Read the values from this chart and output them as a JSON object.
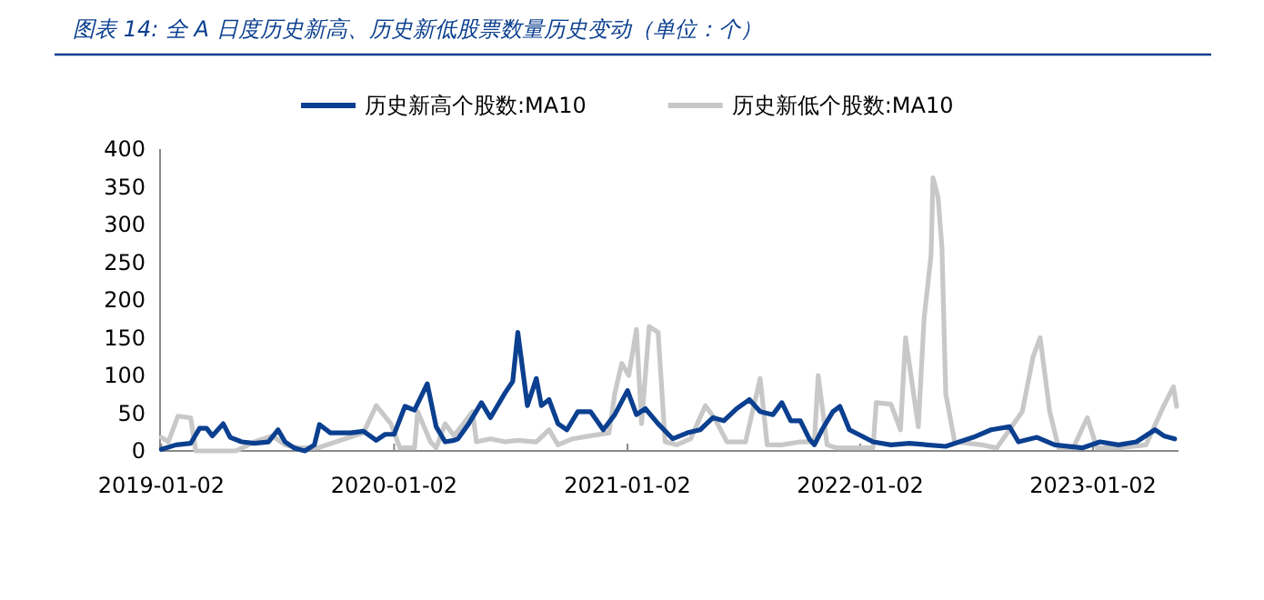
{
  "chart_data": {
    "type": "line",
    "title": "图表 14:  全 A 日度历史新高、历史新低股票数量历史变动（单位：个）",
    "legend": "top",
    "xlim": [
      "2018-12-31",
      "2023-05-16"
    ],
    "xticks": [
      "2019-01-02",
      "2020-01-02",
      "2021-01-02",
      "2022-01-02",
      "2023-01-02"
    ],
    "ylim": [
      0,
      400
    ],
    "yticks": [
      0,
      50,
      100,
      150,
      200,
      250,
      300,
      350,
      400
    ],
    "grid": false,
    "series": [
      {
        "name": "历史新高个股数:MA10",
        "color": "#0b3f8f",
        "x": [
          "2019-01-02",
          "2019-01-25",
          "2019-02-17",
          "2019-03-03",
          "2019-03-14",
          "2019-03-23",
          "2019-04-09",
          "2019-04-20",
          "2019-05-08",
          "2019-05-28",
          "2019-06-19",
          "2019-07-04",
          "2019-07-15",
          "2019-07-29",
          "2019-08-15",
          "2019-08-30",
          "2019-09-07",
          "2019-09-24",
          "2019-10-26",
          "2019-11-15",
          "2019-12-05",
          "2019-12-19",
          "2020-01-02",
          "2020-01-19",
          "2020-02-03",
          "2020-02-23",
          "2020-03-08",
          "2020-03-22",
          "2020-04-05",
          "2020-04-11",
          "2020-04-28",
          "2020-05-18",
          "2020-06-01",
          "2020-06-24",
          "2020-07-06",
          "2020-07-14",
          "2020-07-29",
          "2020-08-12",
          "2020-08-20",
          "2020-09-01",
          "2020-09-15",
          "2020-09-29",
          "2020-10-16",
          "2020-11-05",
          "2020-11-25",
          "2020-12-13",
          "2021-01-02",
          "2021-01-16",
          "2021-01-30",
          "2021-02-19",
          "2021-03-14",
          "2021-04-06",
          "2021-04-26",
          "2021-05-16",
          "2021-06-02",
          "2021-06-22",
          "2021-07-12",
          "2021-07-29",
          "2021-08-18",
          "2021-09-01",
          "2021-09-15",
          "2021-09-30",
          "2021-10-14",
          "2021-10-22",
          "2021-11-03",
          "2021-11-20",
          "2021-12-01",
          "2021-12-16",
          "2021-12-30",
          "2022-01-22",
          "2022-02-19",
          "2022-03-20",
          "2022-05-16",
          "2022-06-28",
          "2022-07-26",
          "2022-08-24",
          "2022-09-07",
          "2022-10-06",
          "2022-11-03",
          "2022-12-16",
          "2023-01-13",
          "2023-02-11",
          "2023-03-11",
          "2023-04-09",
          "2023-04-23",
          "2023-05-10"
        ],
        "values": [
          2,
          8,
          10,
          30,
          30,
          20,
          36,
          18,
          12,
          10,
          12,
          28,
          12,
          4,
          0,
          8,
          35,
          24,
          24,
          26,
          14,
          22,
          22,
          59,
          54,
          89,
          32,
          12,
          14,
          16,
          36,
          64,
          44,
          77,
          92,
          157,
          60,
          96,
          60,
          68,
          36,
          28,
          52,
          52,
          28,
          48,
          80,
          48,
          56,
          36,
          16,
          24,
          28,
          44,
          40,
          56,
          68,
          52,
          48,
          64,
          40,
          40,
          16,
          8,
          28,
          52,
          59,
          28,
          22,
          12,
          8,
          10,
          6,
          18,
          28,
          32,
          12,
          18,
          8,
          4,
          12,
          8,
          12,
          28,
          20,
          16
        ]
      },
      {
        "name": "历史新低个股数:MA10",
        "color": "#c8c8c8",
        "x": [
          "2019-01-02",
          "2019-01-13",
          "2019-01-28",
          "2019-02-17",
          "2019-02-25",
          "2019-04-29",
          "2019-05-28",
          "2019-06-25",
          "2019-07-15",
          "2019-08-07",
          "2019-09-04",
          "2019-10-03",
          "2019-11-15",
          "2019-12-05",
          "2019-12-28",
          "2020-01-11",
          "2020-02-03",
          "2020-02-08",
          "2020-02-28",
          "2020-03-08",
          "2020-03-22",
          "2020-04-05",
          "2020-05-04",
          "2020-05-10",
          "2020-06-01",
          "2020-06-24",
          "2020-07-14",
          "2020-08-12",
          "2020-09-01",
          "2020-09-15",
          "2020-10-08",
          "2020-11-05",
          "2020-12-04",
          "2020-12-13",
          "2020-12-24",
          "2021-01-04",
          "2021-01-16",
          "2021-01-24",
          "2021-02-05",
          "2021-02-19",
          "2021-03-02",
          "2021-03-20",
          "2021-04-11",
          "2021-05-04",
          "2021-05-18",
          "2021-06-07",
          "2021-07-06",
          "2021-07-29",
          "2021-08-09",
          "2021-09-01",
          "2021-09-30",
          "2021-10-22",
          "2021-10-28",
          "2021-11-11",
          "2021-11-26",
          "2022-01-22",
          "2022-01-27",
          "2022-02-19",
          "2022-03-06",
          "2022-03-14",
          "2022-03-25",
          "2022-04-03",
          "2022-04-12",
          "2022-04-23",
          "2022-04-26",
          "2022-05-04",
          "2022-05-10",
          "2022-05-16",
          "2022-05-30",
          "2022-07-12",
          "2022-08-04",
          "2022-08-24",
          "2022-09-13",
          "2022-09-30",
          "2022-10-11",
          "2022-10-26",
          "2022-11-09",
          "2022-12-02",
          "2022-12-24",
          "2023-01-08",
          "2023-02-11",
          "2023-03-26",
          "2023-04-23",
          "2023-05-08",
          "2023-05-13"
        ],
        "values": [
          18,
          12,
          46,
          44,
          0,
          0,
          12,
          20,
          8,
          4,
          4,
          12,
          24,
          60,
          36,
          4,
          4,
          52,
          12,
          4,
          36,
          20,
          52,
          12,
          16,
          12,
          14,
          12,
          28,
          8,
          16,
          20,
          24,
          76,
          116,
          100,
          161,
          36,
          165,
          157,
          12,
          8,
          16,
          60,
          44,
          12,
          12,
          96,
          8,
          8,
          12,
          12,
          100,
          8,
          4,
          4,
          64,
          62,
          28,
          150,
          85,
          32,
          175,
          260,
          362,
          336,
          270,
          76,
          12,
          8,
          4,
          28,
          52,
          125,
          150,
          52,
          4,
          4,
          44,
          4,
          4,
          8,
          60,
          85,
          59
        ]
      }
    ]
  }
}
